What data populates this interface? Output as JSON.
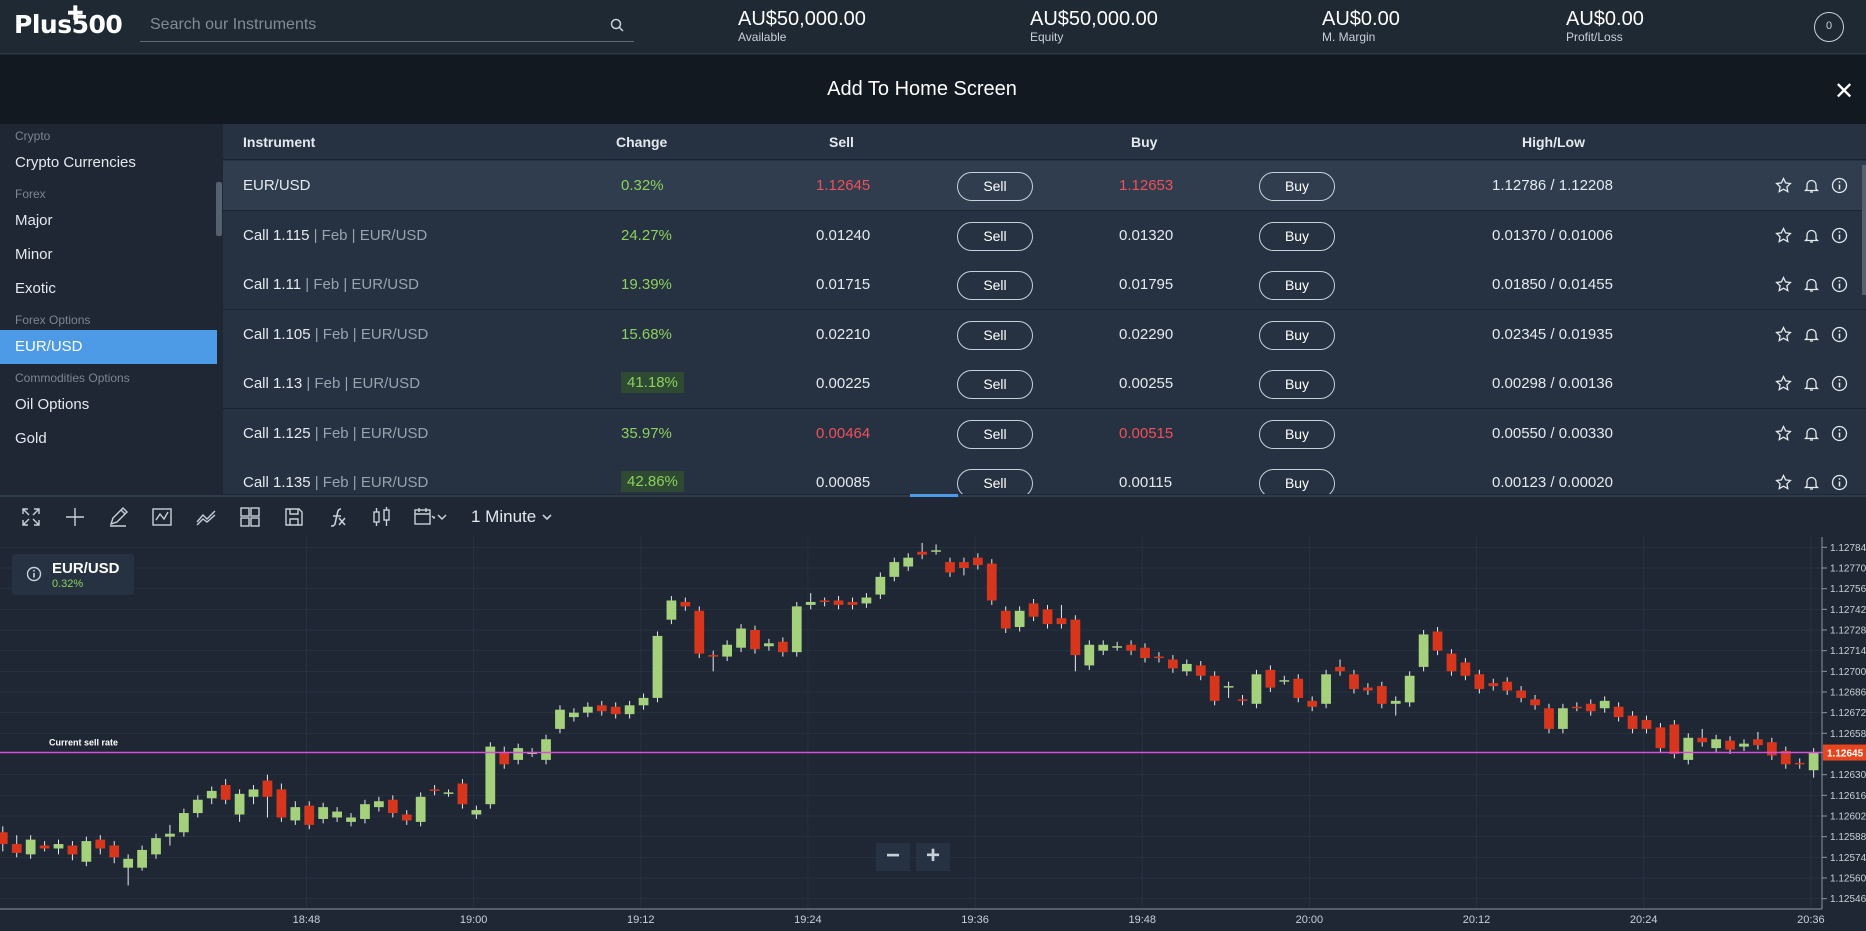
{
  "header": {
    "logo_text": "Plus500",
    "search_placeholder": "Search our Instruments",
    "stats": [
      {
        "value": "AU$50,000.00",
        "label": "Available"
      },
      {
        "value": "AU$50,000.00",
        "label": "Equity"
      },
      {
        "value": "AU$0.00",
        "label": "M. Margin"
      },
      {
        "value": "AU$0.00",
        "label": "Profit/Loss"
      }
    ],
    "profile_badge": "0"
  },
  "banner": {
    "title": "Add To Home Screen",
    "close_label": "✕"
  },
  "sidebar": {
    "sections": [
      {
        "group": "Crypto",
        "items": [
          {
            "label": "Crypto Currencies",
            "active": false
          }
        ]
      },
      {
        "group": "Forex",
        "items": [
          {
            "label": "Major",
            "active": false
          },
          {
            "label": "Minor",
            "active": false
          },
          {
            "label": "Exotic",
            "active": false
          }
        ]
      },
      {
        "group": "Forex Options",
        "items": [
          {
            "label": "EUR/USD",
            "active": true
          }
        ]
      },
      {
        "group": "Commodities Options",
        "items": [
          {
            "label": "Oil Options",
            "active": false
          },
          {
            "label": "Gold",
            "active": false
          }
        ]
      }
    ]
  },
  "table": {
    "headers": {
      "instrument": "Instrument",
      "change": "Change",
      "sell": "Sell",
      "buy": "Buy",
      "highlow": "High/Low"
    },
    "sell_label": "Sell",
    "buy_label": "Buy",
    "rows": [
      {
        "name": "EUR/USD",
        "sub": "",
        "change": "0.32%",
        "change_boxed": false,
        "sell": "1.12645",
        "buy": "1.12653",
        "price_red": true,
        "highlow": "1.12786 / 1.12208",
        "highlight": true
      },
      {
        "name": "Call 1.115",
        "sub": " | Feb | EUR/USD",
        "change": "24.27%",
        "change_boxed": false,
        "sell": "0.01240",
        "buy": "0.01320",
        "price_red": false,
        "highlow": "0.01370 / 0.01006",
        "highlight": false
      },
      {
        "name": "Call 1.11",
        "sub": " | Feb | EUR/USD",
        "change": "19.39%",
        "change_boxed": false,
        "sell": "0.01715",
        "buy": "0.01795",
        "price_red": false,
        "highlow": "0.01850 / 0.01455",
        "highlight": false
      },
      {
        "name": "Call 1.105",
        "sub": " | Feb | EUR/USD",
        "change": "15.68%",
        "change_boxed": false,
        "sell": "0.02210",
        "buy": "0.02290",
        "price_red": false,
        "highlow": "0.02345 / 0.01935",
        "highlight": false
      },
      {
        "name": "Call 1.13",
        "sub": " | Feb | EUR/USD",
        "change": "41.18%",
        "change_boxed": true,
        "sell": "0.00225",
        "buy": "0.00255",
        "price_red": false,
        "highlow": "0.00298 / 0.00136",
        "highlight": false
      },
      {
        "name": "Call 1.125",
        "sub": " | Feb | EUR/USD",
        "change": "35.97%",
        "change_boxed": false,
        "sell": "0.00464",
        "buy": "0.00515",
        "price_red": true,
        "highlow": "0.00550 / 0.00330",
        "highlight": false
      },
      {
        "name": "Call 1.135",
        "sub": " | Feb | EUR/USD",
        "change": "42.86%",
        "change_boxed": true,
        "sell": "0.00085",
        "buy": "0.00115",
        "price_red": false,
        "highlow": "0.00123 / 0.00020",
        "highlight": false
      }
    ]
  },
  "chart_toolbar": {
    "timeframe": "1 Minute",
    "tools": [
      "fullscreen-icon",
      "crosshair-icon",
      "draw-icon",
      "indicator-icon",
      "trend-icon",
      "layout-icon",
      "save-icon",
      "function-icon",
      "compare-icon",
      "calendar-icon"
    ]
  },
  "chart_legend": {
    "instrument": "EUR/USD",
    "change": "0.32%"
  },
  "chart_data": {
    "type": "candlestick",
    "current_sell_label": "Current sell rate",
    "current_sell_rate": 1.12645,
    "current_sell_text": "1.12645",
    "y_ticks": [
      "1.12784",
      "1.12770",
      "1.12756",
      "1.12742",
      "1.12728",
      "1.12714",
      "1.12700",
      "1.12686",
      "1.12672",
      "1.12658",
      "1.12645",
      "1.12630",
      "1.12616",
      "1.12602",
      "1.12588",
      "1.12574",
      "1.12560",
      "1.12546"
    ],
    "ylim": [
      1.12539,
      1.12791
    ],
    "x_ticks": [
      "18:48",
      "19:00",
      "19:12",
      "19:24",
      "19:36",
      "19:48",
      "20:00",
      "20:12",
      "20:24",
      "20:36"
    ],
    "x_ticks_minute": [
      -162,
      -150,
      -138,
      -126,
      -114,
      -102,
      -90,
      -78,
      -66,
      -54
    ],
    "x_range_minutes": [
      -184,
      -53.2
    ],
    "colors": {
      "up": "#a5d17c",
      "down": "#d7361c",
      "line": "#d84fd8",
      "grid": "#273241"
    },
    "candles": [
      [
        1.12601,
        1.1259,
        1.12605,
        1.12585
      ],
      [
        1.12591,
        1.12583,
        1.12595,
        1.12578
      ],
      [
        1.12583,
        1.12577,
        1.12589,
        1.12574
      ],
      [
        1.12576,
        1.12586,
        1.12589,
        1.12573
      ],
      [
        1.12582,
        1.1258,
        1.12585,
        1.12578
      ],
      [
        1.1258,
        1.12583,
        1.12586,
        1.12576
      ],
      [
        1.12582,
        1.12576,
        1.12585,
        1.12572
      ],
      [
        1.12571,
        1.12585,
        1.12588,
        1.12568
      ],
      [
        1.12586,
        1.1258,
        1.12589,
        1.12576
      ],
      [
        1.12582,
        1.12574,
        1.12585,
        1.1257
      ],
      [
        1.12567,
        1.12573,
        1.12576,
        1.12555
      ],
      [
        1.12567,
        1.12579,
        1.12582,
        1.12565
      ],
      [
        1.12576,
        1.12587,
        1.1259,
        1.12573
      ],
      [
        1.12588,
        1.1259,
        1.12596,
        1.12582
      ],
      [
        1.12591,
        1.12604,
        1.12607,
        1.12588
      ],
      [
        1.12604,
        1.12613,
        1.12616,
        1.12601
      ],
      [
        1.12614,
        1.12619,
        1.12622,
        1.1261
      ],
      [
        1.12623,
        1.12613,
        1.12627,
        1.1261
      ],
      [
        1.12603,
        1.12617,
        1.1262,
        1.12598
      ],
      [
        1.12615,
        1.1262,
        1.12623,
        1.1261
      ],
      [
        1.12626,
        1.12615,
        1.1263,
        1.12601
      ],
      [
        1.1262,
        1.12601,
        1.12624,
        1.12598
      ],
      [
        1.12599,
        1.12608,
        1.12612,
        1.12596
      ],
      [
        1.12609,
        1.12596,
        1.12612,
        1.12593
      ],
      [
        1.126,
        1.12608,
        1.12611,
        1.12597
      ],
      [
        1.12601,
        1.12605,
        1.12608,
        1.12598
      ],
      [
        1.12598,
        1.12601,
        1.12604,
        1.12595
      ],
      [
        1.126,
        1.1261,
        1.12613,
        1.12597
      ],
      [
        1.12608,
        1.12612,
        1.12615,
        1.12605
      ],
      [
        1.12613,
        1.12604,
        1.12616,
        1.12601
      ],
      [
        1.12603,
        1.12599,
        1.12606,
        1.12596
      ],
      [
        1.12598,
        1.12615,
        1.12618,
        1.12595
      ],
      [
        1.1262,
        1.12619,
        1.12623,
        1.12616
      ],
      [
        1.12617,
        1.12618,
        1.1262,
        1.12615
      ],
      [
        1.12624,
        1.1261,
        1.12627,
        1.12607
      ],
      [
        1.12603,
        1.12606,
        1.12609,
        1.126
      ],
      [
        1.1261,
        1.12649,
        1.12652,
        1.12607
      ],
      [
        1.12645,
        1.12637,
        1.12649,
        1.12634
      ],
      [
        1.1264,
        1.12648,
        1.12651,
        1.12637
      ],
      [
        1.12645,
        1.12645,
        1.12648,
        1.12642
      ],
      [
        1.1264,
        1.12654,
        1.12657,
        1.12637
      ],
      [
        1.12661,
        1.12674,
        1.12677,
        1.12658
      ],
      [
        1.12669,
        1.12672,
        1.12675,
        1.12666
      ],
      [
        1.12672,
        1.12676,
        1.12679,
        1.12669
      ],
      [
        1.12677,
        1.12673,
        1.1268,
        1.1267
      ],
      [
        1.12676,
        1.12671,
        1.12679,
        1.12668
      ],
      [
        1.12671,
        1.12677,
        1.1268,
        1.12668
      ],
      [
        1.12677,
        1.12682,
        1.12685,
        1.12674
      ],
      [
        1.12682,
        1.12724,
        1.12727,
        1.12679
      ],
      [
        1.12735,
        1.12748,
        1.12751,
        1.12732
      ],
      [
        1.12747,
        1.12744,
        1.1275,
        1.12741
      ],
      [
        1.12741,
        1.12712,
        1.12744,
        1.12709
      ],
      [
        1.12711,
        1.1271,
        1.12714,
        1.127
      ],
      [
        1.1271,
        1.12718,
        1.12721,
        1.12707
      ],
      [
        1.12716,
        1.12729,
        1.12732,
        1.12713
      ],
      [
        1.12728,
        1.12715,
        1.12731,
        1.12712
      ],
      [
        1.12717,
        1.12719,
        1.12722,
        1.12714
      ],
      [
        1.1272,
        1.12713,
        1.12723,
        1.1271
      ],
      [
        1.12713,
        1.12744,
        1.12747,
        1.1271
      ],
      [
        1.12745,
        1.12747,
        1.12753,
        1.12742
      ],
      [
        1.12748,
        1.12747,
        1.1275,
        1.12744
      ],
      [
        1.12748,
        1.12745,
        1.12751,
        1.12742
      ],
      [
        1.12747,
        1.12745,
        1.1275,
        1.12742
      ],
      [
        1.12746,
        1.1275,
        1.12753,
        1.12743
      ],
      [
        1.12752,
        1.12764,
        1.12767,
        1.12749
      ],
      [
        1.12764,
        1.12774,
        1.12777,
        1.12761
      ],
      [
        1.12771,
        1.12777,
        1.1278,
        1.12768
      ],
      [
        1.12781,
        1.12779,
        1.12787,
        1.12776
      ],
      [
        1.12781,
        1.12782,
        1.12786,
        1.12779
      ],
      [
        1.12774,
        1.12767,
        1.12777,
        1.12764
      ],
      [
        1.12774,
        1.1277,
        1.12777,
        1.12765
      ],
      [
        1.12777,
        1.12772,
        1.1278,
        1.12769
      ],
      [
        1.12773,
        1.12748,
        1.12776,
        1.12745
      ],
      [
        1.12741,
        1.12729,
        1.12744,
        1.12726
      ],
      [
        1.1273,
        1.12741,
        1.12744,
        1.12727
      ],
      [
        1.12746,
        1.12737,
        1.12749,
        1.12734
      ],
      [
        1.12742,
        1.12732,
        1.12745,
        1.12729
      ],
      [
        1.12736,
        1.12732,
        1.12745,
        1.12729
      ],
      [
        1.12735,
        1.12711,
        1.12738,
        1.127
      ],
      [
        1.12704,
        1.12718,
        1.12721,
        1.12701
      ],
      [
        1.12714,
        1.12718,
        1.12721,
        1.12711
      ],
      [
        1.12717,
        1.12717,
        1.1272,
        1.12714
      ],
      [
        1.12718,
        1.12714,
        1.12721,
        1.12711
      ],
      [
        1.12716,
        1.12709,
        1.12719,
        1.12706
      ],
      [
        1.1271,
        1.12709,
        1.12713,
        1.12706
      ],
      [
        1.12708,
        1.12702,
        1.12711,
        1.12699
      ],
      [
        1.127,
        1.12705,
        1.12708,
        1.12697
      ],
      [
        1.12704,
        1.12697,
        1.12707,
        1.12694
      ],
      [
        1.12697,
        1.1268,
        1.127,
        1.12677
      ],
      [
        1.1269,
        1.1269,
        1.12693,
        1.12682
      ],
      [
        1.12681,
        1.1268,
        1.12684,
        1.12677
      ],
      [
        1.12678,
        1.12698,
        1.12701,
        1.12675
      ],
      [
        1.12701,
        1.12689,
        1.12704,
        1.12686
      ],
      [
        1.12694,
        1.12694,
        1.12697,
        1.12691
      ],
      [
        1.12695,
        1.12682,
        1.12698,
        1.12679
      ],
      [
        1.1268,
        1.12676,
        1.12683,
        1.12673
      ],
      [
        1.12678,
        1.12698,
        1.12701,
        1.12675
      ],
      [
        1.12703,
        1.127,
        1.12708,
        1.12697
      ],
      [
        1.12698,
        1.12688,
        1.12701,
        1.12685
      ],
      [
        1.12689,
        1.12687,
        1.12692,
        1.12684
      ],
      [
        1.1269,
        1.12678,
        1.12693,
        1.12675
      ],
      [
        1.12678,
        1.1268,
        1.12683,
        1.1267
      ],
      [
        1.12679,
        1.12697,
        1.127,
        1.12676
      ],
      [
        1.12703,
        1.12725,
        1.12728,
        1.127
      ],
      [
        1.12727,
        1.12714,
        1.1273,
        1.12711
      ],
      [
        1.12712,
        1.127,
        1.12715,
        1.12697
      ],
      [
        1.12706,
        1.12697,
        1.12709,
        1.12694
      ],
      [
        1.12698,
        1.12688,
        1.12701,
        1.12685
      ],
      [
        1.12692,
        1.1269,
        1.12695,
        1.12687
      ],
      [
        1.12693,
        1.12687,
        1.12696,
        1.12684
      ],
      [
        1.12687,
        1.12682,
        1.1269,
        1.12679
      ],
      [
        1.12681,
        1.12677,
        1.12684,
        1.12674
      ],
      [
        1.12675,
        1.12661,
        1.12678,
        1.12658
      ],
      [
        1.12661,
        1.12675,
        1.12678,
        1.12658
      ],
      [
        1.12676,
        1.12675,
        1.12679,
        1.12673
      ],
      [
        1.12678,
        1.12673,
        1.12681,
        1.1267
      ],
      [
        1.12675,
        1.1268,
        1.12683,
        1.12672
      ],
      [
        1.12676,
        1.12669,
        1.12679,
        1.12666
      ],
      [
        1.1267,
        1.12661,
        1.12673,
        1.12658
      ],
      [
        1.12667,
        1.12661,
        1.1267,
        1.12658
      ],
      [
        1.12662,
        1.12648,
        1.12665,
        1.12645
      ],
      [
        1.12664,
        1.12644,
        1.12667,
        1.12641
      ],
      [
        1.1264,
        1.12655,
        1.12658,
        1.12637
      ],
      [
        1.12655,
        1.12652,
        1.12661,
        1.12649
      ],
      [
        1.12648,
        1.12654,
        1.12657,
        1.12645
      ],
      [
        1.12653,
        1.12647,
        1.12656,
        1.12644
      ],
      [
        1.12649,
        1.12651,
        1.12654,
        1.12646
      ],
      [
        1.12654,
        1.1265,
        1.12659,
        1.12647
      ],
      [
        1.12652,
        1.12643,
        1.12655,
        1.1264
      ],
      [
        1.12646,
        1.12637,
        1.12649,
        1.12634
      ],
      [
        1.12638,
        1.12637,
        1.12641,
        1.12634
      ],
      [
        1.12633,
        1.12645,
        1.12648,
        1.12628
      ]
    ]
  }
}
